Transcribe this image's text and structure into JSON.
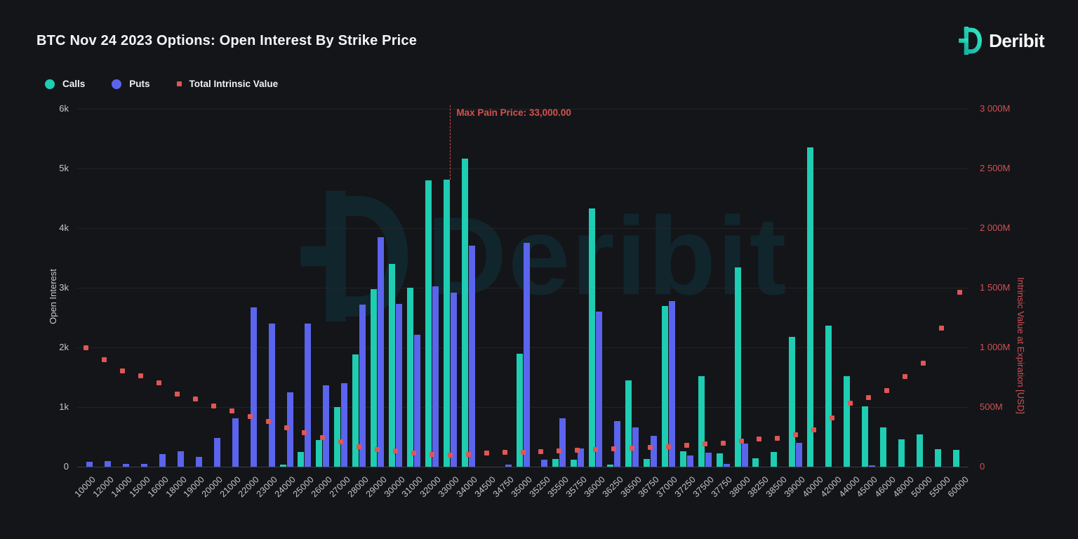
{
  "header": {
    "title": "BTC Nov 24 2023 Options: Open Interest By Strike Price",
    "brand": "Deribit"
  },
  "legend": [
    {
      "label": "Calls",
      "marker": "circle",
      "color": "#1ecdb2"
    },
    {
      "label": "Puts",
      "marker": "circle",
      "color": "#5b64ec"
    },
    {
      "label": "Total Intrinsic Value",
      "marker": "square",
      "color": "#e05656"
    }
  ],
  "watermark": {
    "text": "Deribit"
  },
  "annotation": {
    "max_pain_label": "Max Pain Price: 33,000.00",
    "max_pain_strike": "33000"
  },
  "colors": {
    "background": "#141519",
    "calls": "#1ecdb2",
    "puts": "#5b64ec",
    "intrinsic": "#e05656",
    "right_axis_text": "#cf5154",
    "grid": "#222428"
  },
  "chart_data": {
    "type": "bar",
    "title": "BTC Nov 24 2023 Options: Open Interest By Strike Price",
    "categories": [
      "10000",
      "12000",
      "14000",
      "15000",
      "16000",
      "18000",
      "19000",
      "20000",
      "21000",
      "22000",
      "23000",
      "24000",
      "25000",
      "26000",
      "27000",
      "28000",
      "29000",
      "30000",
      "31000",
      "32000",
      "33000",
      "34000",
      "34500",
      "34750",
      "35000",
      "35250",
      "35500",
      "35750",
      "36000",
      "36250",
      "36500",
      "36750",
      "37000",
      "37250",
      "37500",
      "37750",
      "38000",
      "38250",
      "38500",
      "39000",
      "40000",
      "42000",
      "44000",
      "45000",
      "46000",
      "48000",
      "50000",
      "55000",
      "60000"
    ],
    "series": [
      {
        "name": "Calls",
        "type": "bar",
        "axis": "left",
        "color": "#1ecdb2",
        "values": [
          0,
          0,
          0,
          0,
          0,
          0,
          0,
          0,
          0,
          0,
          0,
          40,
          250,
          450,
          1000,
          1880,
          2980,
          3400,
          3000,
          4800,
          4810,
          5160,
          0,
          0,
          1900,
          0,
          130,
          120,
          4330,
          30,
          1450,
          130,
          2700,
          260,
          1520,
          220,
          3340,
          140,
          250,
          2180,
          5350,
          2370,
          1520,
          1010,
          660,
          460,
          540,
          290,
          280
        ]
      },
      {
        "name": "Puts",
        "type": "bar",
        "axis": "left",
        "color": "#5b64ec",
        "values": [
          80,
          100,
          50,
          50,
          210,
          260,
          165,
          480,
          810,
          2670,
          2400,
          1250,
          2400,
          1370,
          1400,
          2720,
          3850,
          2730,
          2210,
          3020,
          2920,
          3710,
          0,
          35,
          3750,
          120,
          810,
          310,
          2600,
          770,
          660,
          520,
          2780,
          190,
          230,
          50,
          390,
          0,
          0,
          400,
          0,
          0,
          0,
          15,
          0,
          0,
          0,
          0,
          0
        ]
      },
      {
        "name": "Total Intrinsic Value",
        "type": "scatter",
        "axis": "right",
        "color": "#e05656",
        "values": [
          1000,
          900,
          805,
          760,
          705,
          610,
          565,
          510,
          465,
          420,
          380,
          325,
          285,
          245,
          210,
          170,
          145,
          130,
          115,
          105,
          100,
          105,
          112,
          118,
          122,
          128,
          135,
          138,
          142,
          148,
          155,
          162,
          170,
          180,
          190,
          200,
          215,
          230,
          240,
          265,
          310,
          410,
          530,
          580,
          640,
          755,
          870,
          1160,
          1460
        ]
      }
    ],
    "left_axis": {
      "label": "Open Interest",
      "ticks": [
        "0",
        "1k",
        "2k",
        "3k",
        "4k",
        "5k",
        "6k"
      ],
      "min": 0,
      "max": 6000
    },
    "right_axis": {
      "label": "Intrinsic Value at Expiration [USD]",
      "ticks": [
        "0",
        "500M",
        "1 000M",
        "1 500M",
        "2 000M",
        "2 500M",
        "3 000M"
      ],
      "min": 0,
      "max": 3000,
      "unit": "M USD"
    },
    "x_axis": {
      "label": "",
      "tick_rotation": -45
    },
    "grid": "horizontal",
    "legend_position": "top-left"
  }
}
